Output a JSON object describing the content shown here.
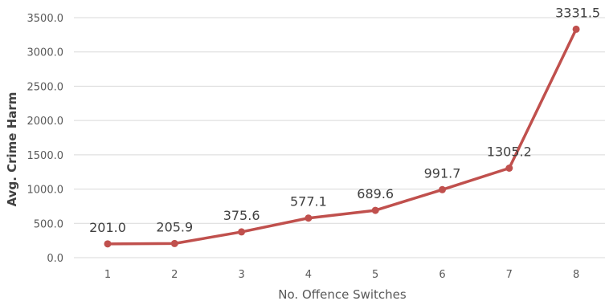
{
  "chart_data": {
    "type": "line",
    "xlabel": "No. Offence Switches",
    "ylabel": "Avg. Crime Harm",
    "categories": [
      "1",
      "2",
      "3",
      "4",
      "5",
      "6",
      "7",
      "8"
    ],
    "series": [
      {
        "values": [
          201.0,
          205.9,
          375.6,
          577.1,
          689.6,
          991.7,
          1305.2,
          3331.5
        ],
        "data_labels": [
          "201.0",
          "205.9",
          "375.6",
          "577.1",
          "689.6",
          "991.7",
          "1305.2",
          "3331.5"
        ],
        "color": "#c0504d"
      }
    ],
    "ylim": [
      0,
      3500
    ],
    "y_ticks": [
      0,
      500,
      1000,
      1500,
      2000,
      2500,
      3000,
      3500
    ],
    "y_tick_labels": [
      "0.0",
      "500.0",
      "1000.0",
      "1500.0",
      "2000.0",
      "2500.0",
      "3000.0",
      "3500.0"
    ],
    "grid": true,
    "colors": {
      "gridline": "#d9d9d9",
      "line": "#c0504d"
    }
  }
}
